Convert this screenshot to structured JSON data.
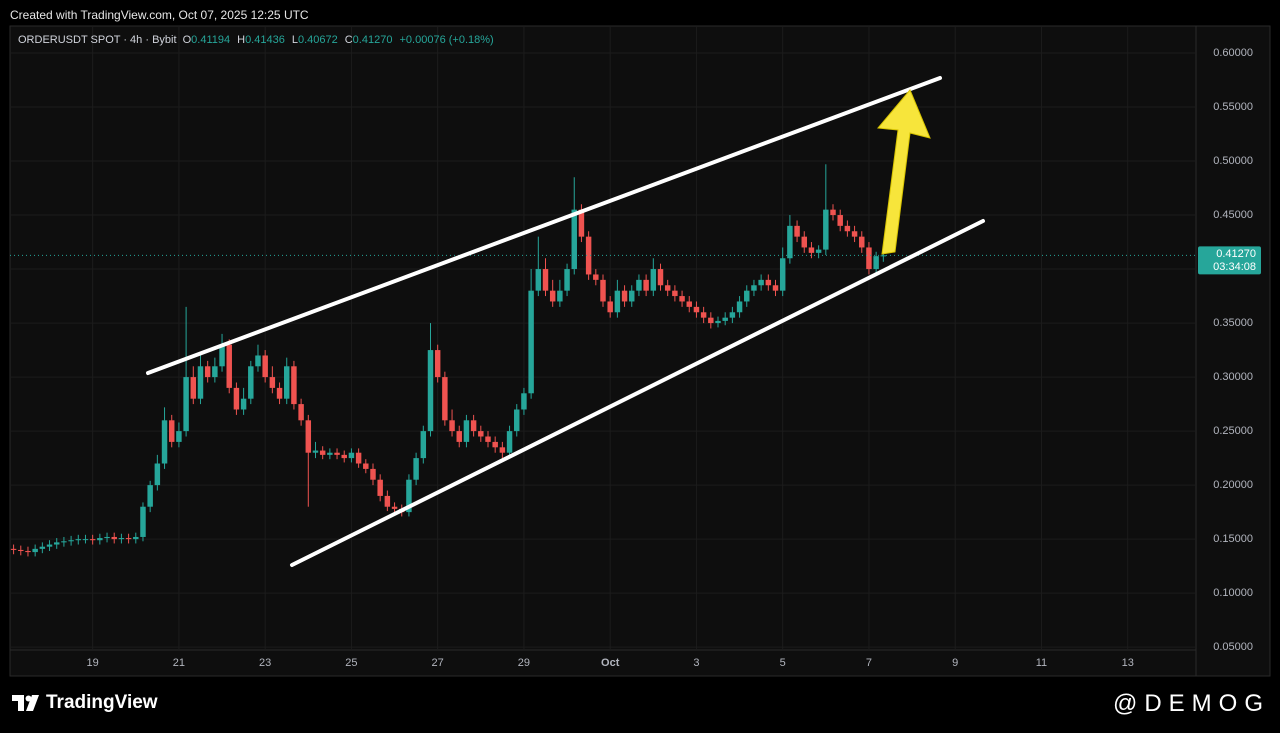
{
  "header": {
    "credit": "Created with TradingView.com, Oct 07, 2025 12:25 UTC"
  },
  "footer": {
    "brand": "TradingView",
    "watermark": "@DEMOG"
  },
  "chart_data": {
    "type": "candlestick",
    "symbol": "ORDERUSDT SPOT · 4h · Bybit",
    "info": [
      {
        "key": "O",
        "value": "0.41194"
      },
      {
        "key": "H",
        "value": "0.41436"
      },
      {
        "key": "L",
        "value": "0.40672"
      },
      {
        "key": "C",
        "value": "0.41270"
      }
    ],
    "change": "+0.00076 (+0.18%)",
    "last_price_label": "0.41270",
    "countdown": "03:34:08",
    "up_color": "#26a69a",
    "down_color": "#ef5350",
    "grid": true,
    "ylim": [
      0.027,
      0.625
    ],
    "yticks": [
      {
        "value": 0.05,
        "label": "0.05000"
      },
      {
        "value": 0.1,
        "label": "0.10000"
      },
      {
        "value": 0.15,
        "label": "0.15000"
      },
      {
        "value": 0.2,
        "label": "0.20000"
      },
      {
        "value": 0.25,
        "label": "0.25000"
      },
      {
        "value": 0.3,
        "label": "0.30000"
      },
      {
        "value": 0.35,
        "label": "0.35000"
      },
      {
        "value": 0.4,
        "label": "0.40000"
      },
      {
        "value": 0.45,
        "label": "0.45000"
      },
      {
        "value": 0.5,
        "label": "0.50000"
      },
      {
        "value": 0.55,
        "label": "0.55000"
      },
      {
        "value": 0.6,
        "label": "0.60000"
      }
    ],
    "categories": [
      null,
      null,
      null,
      null,
      null,
      null,
      null,
      null,
      null,
      null,
      null,
      "19",
      null,
      null,
      null,
      null,
      null,
      null,
      null,
      null,
      null,
      null,
      null,
      "21",
      null,
      null,
      null,
      null,
      null,
      null,
      null,
      null,
      null,
      null,
      null,
      "23",
      null,
      null,
      null,
      null,
      null,
      null,
      null,
      null,
      null,
      null,
      null,
      "25",
      null,
      null,
      null,
      null,
      null,
      null,
      null,
      null,
      null,
      null,
      null,
      "27",
      null,
      null,
      null,
      null,
      null,
      null,
      null,
      null,
      null,
      null,
      null,
      "29",
      null,
      null,
      null,
      null,
      null,
      null,
      null,
      null,
      null,
      null,
      null,
      "Oct",
      null,
      null,
      null,
      null,
      null,
      null,
      null,
      null,
      null,
      null,
      null,
      "3",
      null,
      null,
      null,
      null,
      null,
      null,
      null,
      null,
      null,
      null,
      null,
      "5",
      null,
      null,
      null,
      null,
      null,
      null,
      null,
      null,
      null,
      null,
      null,
      "7",
      null,
      null,
      null,
      null,
      null,
      null,
      null,
      null,
      null,
      null,
      null,
      "9",
      null,
      null,
      null,
      null,
      null,
      null,
      null,
      null,
      null,
      null,
      null,
      "11",
      null,
      null,
      null,
      null,
      null,
      null,
      null,
      null,
      null,
      null,
      null,
      "13",
      null,
      null,
      null,
      null,
      null,
      null,
      null,
      null,
      null
    ],
    "open": [
      0.141,
      0.14,
      0.139,
      0.138,
      0.141,
      0.143,
      0.145,
      0.147,
      0.148,
      0.149,
      0.15,
      0.15,
      0.149,
      0.151,
      0.152,
      0.15,
      0.151,
      0.15,
      0.152,
      0.18,
      0.2,
      0.22,
      0.26,
      0.24,
      0.25,
      0.3,
      0.28,
      0.31,
      0.3,
      0.31,
      0.33,
      0.29,
      0.27,
      0.28,
      0.31,
      0.32,
      0.3,
      0.29,
      0.28,
      0.31,
      0.275,
      0.26,
      0.23,
      0.232,
      0.228,
      0.23,
      0.228,
      0.225,
      0.23,
      0.22,
      0.215,
      0.205,
      0.19,
      0.18,
      0.178,
      0.175,
      0.205,
      0.225,
      0.25,
      0.325,
      0.3,
      0.26,
      0.25,
      0.24,
      0.26,
      0.25,
      0.245,
      0.24,
      0.235,
      0.23,
      0.25,
      0.27,
      0.285,
      0.38,
      0.4,
      0.38,
      0.37,
      0.38,
      0.4,
      0.455,
      0.43,
      0.395,
      0.39,
      0.37,
      0.36,
      0.38,
      0.37,
      0.38,
      0.39,
      0.38,
      0.4,
      0.385,
      0.38,
      0.375,
      0.37,
      0.365,
      0.36,
      0.355,
      0.35,
      0.352,
      0.355,
      0.36,
      0.37,
      0.38,
      0.385,
      0.39,
      0.385,
      0.38,
      0.41,
      0.44,
      0.43,
      0.42,
      0.415,
      0.418,
      0.455,
      0.45,
      0.44,
      0.435,
      0.43,
      0.42,
      0.4,
      0.41194,
      null,
      null,
      null,
      null,
      null,
      null,
      null,
      null,
      null,
      null,
      null,
      null,
      null,
      null,
      null,
      null,
      null,
      null,
      null,
      null,
      null,
      null,
      null,
      null,
      null,
      null,
      null,
      null,
      null,
      null,
      null,
      null,
      null,
      null,
      null,
      null,
      null,
      null,
      null,
      null,
      null,
      null,
      null
    ],
    "high": [
      0.145,
      0.144,
      0.143,
      0.145,
      0.147,
      0.149,
      0.151,
      0.152,
      0.153,
      0.154,
      0.154,
      0.154,
      0.155,
      0.156,
      0.156,
      0.155,
      0.155,
      0.156,
      0.184,
      0.204,
      0.228,
      0.272,
      0.265,
      0.258,
      0.365,
      0.31,
      0.32,
      0.315,
      0.318,
      0.34,
      0.335,
      0.295,
      0.29,
      0.315,
      0.33,
      0.325,
      0.31,
      0.295,
      0.318,
      0.315,
      0.28,
      0.265,
      0.24,
      0.236,
      0.234,
      0.234,
      0.232,
      0.234,
      0.234,
      0.224,
      0.22,
      0.21,
      0.195,
      0.184,
      0.182,
      0.21,
      0.23,
      0.255,
      0.35,
      0.33,
      0.305,
      0.27,
      0.255,
      0.265,
      0.265,
      0.255,
      0.25,
      0.245,
      0.24,
      0.255,
      0.275,
      0.29,
      0.4,
      0.43,
      0.41,
      0.39,
      0.39,
      0.405,
      0.485,
      0.46,
      0.435,
      0.4,
      0.395,
      0.375,
      0.39,
      0.385,
      0.385,
      0.395,
      0.395,
      0.41,
      0.405,
      0.39,
      0.385,
      0.38,
      0.375,
      0.37,
      0.365,
      0.36,
      0.356,
      0.36,
      0.365,
      0.375,
      0.385,
      0.39,
      0.395,
      0.395,
      0.39,
      0.42,
      0.45,
      0.445,
      0.435,
      0.425,
      0.422,
      0.497,
      0.46,
      0.455,
      0.445,
      0.44,
      0.435,
      0.425,
      0.416,
      0.41436,
      null,
      null,
      null,
      null,
      null,
      null,
      null,
      null,
      null,
      null,
      null,
      null,
      null,
      null,
      null,
      null,
      null,
      null,
      null,
      null,
      null,
      null,
      null,
      null,
      null,
      null,
      null,
      null,
      null,
      null,
      null,
      null,
      null,
      null,
      null,
      null,
      null,
      null,
      null,
      null,
      null,
      null,
      null
    ],
    "low": [
      0.136,
      0.135,
      0.134,
      0.134,
      0.137,
      0.139,
      0.141,
      0.143,
      0.144,
      0.145,
      0.146,
      0.145,
      0.145,
      0.147,
      0.146,
      0.146,
      0.146,
      0.146,
      0.148,
      0.175,
      0.195,
      0.215,
      0.235,
      0.235,
      0.245,
      0.275,
      0.275,
      0.295,
      0.295,
      0.305,
      0.285,
      0.265,
      0.265,
      0.275,
      0.305,
      0.295,
      0.285,
      0.275,
      0.275,
      0.27,
      0.255,
      0.18,
      0.225,
      0.224,
      0.224,
      0.224,
      0.221,
      0.221,
      0.216,
      0.211,
      0.2,
      0.185,
      0.176,
      0.174,
      0.171,
      0.171,
      0.2,
      0.22,
      0.245,
      0.295,
      0.255,
      0.245,
      0.235,
      0.235,
      0.245,
      0.24,
      0.235,
      0.23,
      0.225,
      0.225,
      0.245,
      0.265,
      0.28,
      0.375,
      0.375,
      0.365,
      0.365,
      0.375,
      0.395,
      0.425,
      0.39,
      0.385,
      0.365,
      0.355,
      0.355,
      0.365,
      0.365,
      0.375,
      0.375,
      0.375,
      0.38,
      0.375,
      0.37,
      0.365,
      0.36,
      0.355,
      0.35,
      0.345,
      0.346,
      0.348,
      0.35,
      0.355,
      0.365,
      0.375,
      0.38,
      0.38,
      0.375,
      0.375,
      0.405,
      0.425,
      0.415,
      0.41,
      0.41,
      0.413,
      0.445,
      0.435,
      0.43,
      0.425,
      0.415,
      0.395,
      0.396,
      0.40672,
      null,
      null,
      null,
      null,
      null,
      null,
      null,
      null,
      null,
      null,
      null,
      null,
      null,
      null,
      null,
      null,
      null,
      null,
      null,
      null,
      null,
      null,
      null,
      null,
      null,
      null,
      null,
      null,
      null,
      null,
      null,
      null,
      null,
      null,
      null,
      null,
      null,
      null,
      null,
      null,
      null,
      null,
      null
    ],
    "close": [
      0.14,
      0.139,
      0.138,
      0.141,
      0.143,
      0.145,
      0.147,
      0.148,
      0.149,
      0.15,
      0.15,
      0.149,
      0.151,
      0.152,
      0.15,
      0.151,
      0.15,
      0.152,
      0.18,
      0.2,
      0.22,
      0.26,
      0.24,
      0.25,
      0.3,
      0.28,
      0.31,
      0.3,
      0.31,
      0.33,
      0.29,
      0.27,
      0.28,
      0.31,
      0.32,
      0.3,
      0.29,
      0.28,
      0.31,
      0.275,
      0.26,
      0.23,
      0.232,
      0.228,
      0.23,
      0.228,
      0.225,
      0.23,
      0.22,
      0.215,
      0.205,
      0.19,
      0.18,
      0.178,
      0.175,
      0.205,
      0.225,
      0.25,
      0.325,
      0.3,
      0.26,
      0.25,
      0.24,
      0.26,
      0.25,
      0.245,
      0.24,
      0.235,
      0.23,
      0.25,
      0.27,
      0.285,
      0.38,
      0.4,
      0.38,
      0.37,
      0.38,
      0.4,
      0.455,
      0.43,
      0.395,
      0.39,
      0.37,
      0.36,
      0.38,
      0.37,
      0.38,
      0.39,
      0.38,
      0.4,
      0.385,
      0.38,
      0.375,
      0.37,
      0.365,
      0.36,
      0.355,
      0.35,
      0.352,
      0.355,
      0.36,
      0.37,
      0.38,
      0.385,
      0.39,
      0.385,
      0.38,
      0.41,
      0.44,
      0.43,
      0.42,
      0.415,
      0.418,
      0.455,
      0.45,
      0.44,
      0.435,
      0.43,
      0.42,
      0.4,
      0.41194,
      0.4127,
      null,
      null,
      null,
      null,
      null,
      null,
      null,
      null,
      null,
      null,
      null,
      null,
      null,
      null,
      null,
      null,
      null,
      null,
      null,
      null,
      null,
      null,
      null,
      null,
      null,
      null,
      null,
      null,
      null,
      null,
      null,
      null,
      null,
      null,
      null,
      null,
      null,
      null,
      null,
      null,
      null,
      null,
      null
    ]
  }
}
